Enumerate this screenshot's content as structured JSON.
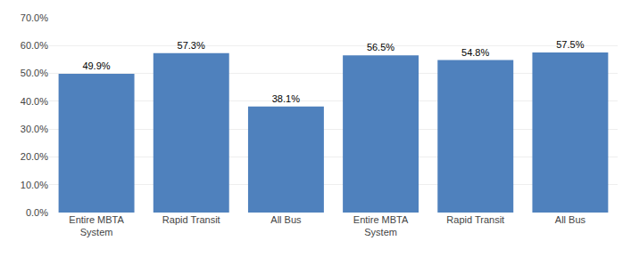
{
  "chart_data": {
    "type": "bar",
    "categories": [
      "Entire MBTA\nSystem",
      "Rapid Transit",
      "All Bus",
      "Entire MBTA\nSystem",
      "Rapid Transit",
      "All Bus"
    ],
    "values": [
      0.499,
      0.573,
      0.381,
      0.565,
      0.548,
      0.575
    ],
    "value_labels": [
      "49.9%",
      "57.3%",
      "38.1%",
      "56.5%",
      "54.8%",
      "57.5%"
    ],
    "data_labels": true,
    "color": "#4F81BD",
    "ylim": [
      0.0,
      0.7
    ],
    "yticks": [
      {
        "value": 0.0,
        "label": "0.0%"
      },
      {
        "value": 0.1,
        "label": "10.0%"
      },
      {
        "value": 0.2,
        "label": "20.0%"
      },
      {
        "value": 0.3,
        "label": "30.0%"
      },
      {
        "value": 0.4,
        "label": "40.0%"
      },
      {
        "value": 0.5,
        "label": "50.0%"
      },
      {
        "value": 0.6,
        "label": "60.0%"
      },
      {
        "value": 0.7,
        "label": "70.0%"
      }
    ],
    "grid": true
  }
}
